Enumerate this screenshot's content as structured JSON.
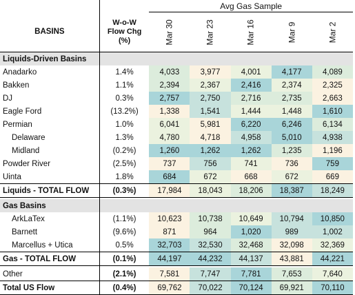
{
  "header": {
    "basins_label": "BASINS",
    "chg_label_1": "W-o-W",
    "chg_label_2": "Flow Chg",
    "chg_label_3": "(%)",
    "avg_title": "Avg Gas Sample",
    "dates": [
      "Mar 30",
      "Mar 23",
      "Mar 16",
      "Mar 9",
      "Mar 2"
    ]
  },
  "colors": {
    "section_bg": "#e3e3e3",
    "high": "#a9d5d9",
    "mid_high": "#c7e2dd",
    "mid": "#dcecdc",
    "mid_low": "#ebf2df",
    "low": "#fbf2e1"
  },
  "rows": [
    {
      "kind": "section",
      "name": "Liquids-Driven Basins",
      "chg": "",
      "values": [
        "",
        "",
        "",
        "",
        ""
      ],
      "shade": [
        "",
        "",
        "",
        "",
        ""
      ]
    },
    {
      "kind": "row",
      "name": "Anadarko",
      "chg": "1.4%",
      "values": [
        "4,033",
        "3,977",
        "4,001",
        "4,177",
        "4,089"
      ],
      "shade": [
        "mid",
        "low",
        "mid_low",
        "high",
        "mid"
      ]
    },
    {
      "kind": "row",
      "name": "Bakken",
      "chg": "1.1%",
      "values": [
        "2,394",
        "2,367",
        "2,416",
        "2,374",
        "2,325"
      ],
      "shade": [
        "mid",
        "mid_low",
        "high",
        "mid_low",
        "low"
      ]
    },
    {
      "kind": "row",
      "name": "DJ",
      "chg": "0.3%",
      "values": [
        "2,757",
        "2,750",
        "2,716",
        "2,735",
        "2,663"
      ],
      "shade": [
        "high",
        "mid_high",
        "mid",
        "mid",
        "low"
      ]
    },
    {
      "kind": "row",
      "name": "Eagle Ford",
      "chg": "(13.2%)",
      "values": [
        "1,338",
        "1,541",
        "1,444",
        "1,448",
        "1,610"
      ],
      "shade": [
        "low",
        "mid_high",
        "mid_low",
        "mid_low",
        "high"
      ]
    },
    {
      "kind": "row",
      "name": "Permian",
      "chg": "1.0%",
      "values": [
        "6,041",
        "5,981",
        "6,220",
        "6,246",
        "6,134"
      ],
      "shade": [
        "mid_low",
        "low",
        "high",
        "high",
        "mid"
      ]
    },
    {
      "kind": "row",
      "indent": true,
      "name": "Delaware",
      "chg": "1.3%",
      "values": [
        "4,780",
        "4,718",
        "4,958",
        "5,010",
        "4,938"
      ],
      "shade": [
        "mid_low",
        "low",
        "mid_high",
        "high",
        "mid_high"
      ]
    },
    {
      "kind": "row",
      "indent": true,
      "name": "Midland",
      "chg": "(0.2%)",
      "values": [
        "1,260",
        "1,262",
        "1,262",
        "1,235",
        "1,196"
      ],
      "shade": [
        "high",
        "high",
        "high",
        "mid",
        "low"
      ]
    },
    {
      "kind": "row",
      "name": "Powder River",
      "chg": "(2.5%)",
      "values": [
        "737",
        "756",
        "741",
        "736",
        "759"
      ],
      "shade": [
        "low",
        "mid_high",
        "mid_low",
        "low",
        "high"
      ]
    },
    {
      "kind": "row",
      "name": "Uinta",
      "chg": "1.8%",
      "values": [
        "684",
        "672",
        "668",
        "672",
        "669"
      ],
      "shade": [
        "high",
        "mid_low",
        "low",
        "mid_low",
        "low"
      ]
    },
    {
      "kind": "total",
      "name": "Liquids - TOTAL FLOW",
      "chg": "(0.3%)",
      "values": [
        "17,984",
        "18,043",
        "18,206",
        "18,387",
        "18,249"
      ],
      "shade": [
        "low",
        "mid_low",
        "mid",
        "high",
        "mid_high"
      ]
    },
    {
      "kind": "gap"
    },
    {
      "kind": "section",
      "name": "Gas Basins",
      "chg": "",
      "values": [
        "",
        "",
        "",
        "",
        ""
      ],
      "shade": [
        "",
        "",
        "",
        "",
        ""
      ]
    },
    {
      "kind": "row",
      "indent": true,
      "name": "ArkLaTex",
      "chg": "(1.1%)",
      "values": [
        "10,623",
        "10,738",
        "10,649",
        "10,794",
        "10,850"
      ],
      "shade": [
        "low",
        "mid",
        "mid_low",
        "mid_high",
        "high"
      ]
    },
    {
      "kind": "row",
      "indent": true,
      "name": "Barnett",
      "chg": "(9.6%)",
      "values": [
        "871",
        "964",
        "1,020",
        "989",
        "1,002"
      ],
      "shade": [
        "low",
        "mid",
        "high",
        "mid_high",
        "mid_high"
      ]
    },
    {
      "kind": "row",
      "indent": true,
      "name": "Marcellus + Utica",
      "chg": "0.5%",
      "values": [
        "32,703",
        "32,530",
        "32,468",
        "32,098",
        "32,369"
      ],
      "shade": [
        "high",
        "mid_high",
        "mid",
        "low",
        "mid_low"
      ]
    },
    {
      "kind": "total",
      "name": "Gas - TOTAL FLOW",
      "chg": "(0.1%)",
      "values": [
        "44,197",
        "44,232",
        "44,137",
        "43,881",
        "44,221"
      ],
      "shade": [
        "high",
        "high",
        "mid_high",
        "low",
        "high"
      ]
    },
    {
      "kind": "gap"
    },
    {
      "kind": "row",
      "name": "Other",
      "chg": "(2.1%)",
      "values": [
        "7,581",
        "7,747",
        "7,781",
        "7,653",
        "7,640"
      ],
      "shade": [
        "low",
        "mid_high",
        "high",
        "mid",
        "mid_low"
      ],
      "boldchg": true
    },
    {
      "kind": "total",
      "name": "Total US Flow",
      "chg": "(0.4%)",
      "values": [
        "69,762",
        "70,022",
        "70,124",
        "69,921",
        "70,110"
      ],
      "shade": [
        "low",
        "mid_high",
        "high",
        "mid",
        "high"
      ]
    }
  ]
}
